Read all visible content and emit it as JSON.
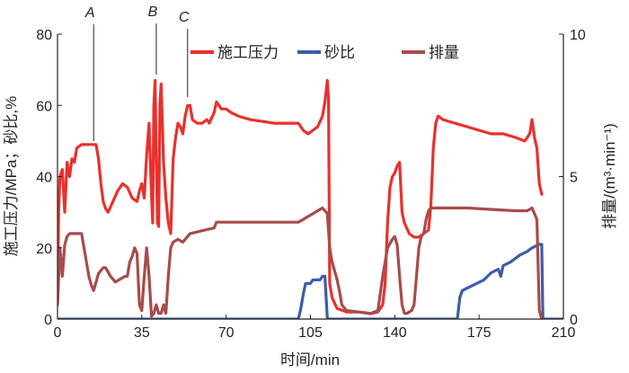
{
  "chart_data": {
    "type": "line",
    "xlabel": "时间/min",
    "ylabel_left": "施工压力/MPa；砂比,%",
    "ylabel_right": "排量/(m³·min⁻¹)",
    "xlim": [
      0,
      210
    ],
    "ylim_left": [
      0,
      80
    ],
    "ylim_right": [
      0,
      10
    ],
    "x_ticks": [
      0,
      35,
      70,
      105,
      140,
      175,
      210
    ],
    "y_left_ticks": [
      0,
      20,
      40,
      60,
      80
    ],
    "y_right_ticks": [
      0,
      5,
      10
    ],
    "annotations": [
      {
        "label": "A",
        "x": 15
      },
      {
        "label": "B",
        "x": 41
      },
      {
        "label": "C",
        "x": 54
      }
    ],
    "legend_position": "top-center",
    "series": [
      {
        "name": "施工压力",
        "color": "#e8312d",
        "axis": "left",
        "points": [
          [
            0,
            5
          ],
          [
            0.5,
            30
          ],
          [
            1,
            40
          ],
          [
            2,
            42
          ],
          [
            3,
            30
          ],
          [
            4,
            44
          ],
          [
            5,
            40
          ],
          [
            6,
            45
          ],
          [
            7,
            44
          ],
          [
            8,
            48
          ],
          [
            10,
            49
          ],
          [
            12,
            49
          ],
          [
            16,
            49
          ],
          [
            17,
            45
          ],
          [
            18,
            38
          ],
          [
            19,
            33
          ],
          [
            20,
            31
          ],
          [
            21,
            30
          ],
          [
            23,
            33
          ],
          [
            25,
            36
          ],
          [
            27,
            38
          ],
          [
            29,
            37
          ],
          [
            31,
            34
          ],
          [
            33,
            33
          ],
          [
            34,
            36
          ],
          [
            35,
            38
          ],
          [
            36,
            34
          ],
          [
            37,
            46
          ],
          [
            38,
            55
          ],
          [
            39,
            35
          ],
          [
            39.5,
            27
          ],
          [
            40,
            60
          ],
          [
            40.5,
            67
          ],
          [
            41,
            45
          ],
          [
            41.5,
            27
          ],
          [
            42,
            26
          ],
          [
            42.5,
            60
          ],
          [
            43,
            66
          ],
          [
            44,
            44
          ],
          [
            45,
            34
          ],
          [
            46,
            27
          ],
          [
            47,
            24
          ],
          [
            48,
            45
          ],
          [
            49,
            51
          ],
          [
            50,
            55
          ],
          [
            51,
            54
          ],
          [
            52,
            52
          ],
          [
            53,
            57
          ],
          [
            54,
            60
          ],
          [
            55,
            60
          ],
          [
            56,
            56
          ],
          [
            58,
            55
          ],
          [
            60,
            55
          ],
          [
            62,
            56
          ],
          [
            63,
            55
          ],
          [
            65,
            58
          ],
          [
            66,
            61
          ],
          [
            68,
            59
          ],
          [
            70,
            59
          ],
          [
            72,
            58
          ],
          [
            75,
            57
          ],
          [
            80,
            56
          ],
          [
            85,
            55.5
          ],
          [
            90,
            55
          ],
          [
            95,
            55
          ],
          [
            100,
            55
          ],
          [
            102,
            53
          ],
          [
            104,
            52
          ],
          [
            106,
            53
          ],
          [
            108,
            54
          ],
          [
            110,
            57
          ],
          [
            111,
            61
          ],
          [
            112,
            67
          ],
          [
            112.5,
            62
          ],
          [
            113,
            10
          ],
          [
            114,
            6
          ],
          [
            116,
            3
          ],
          [
            120,
            2
          ],
          [
            125,
            2
          ],
          [
            130,
            1.5
          ],
          [
            133,
            2
          ],
          [
            134,
            3
          ],
          [
            135,
            4
          ],
          [
            136,
            10
          ],
          [
            137,
            27
          ],
          [
            138,
            37
          ],
          [
            139,
            40
          ],
          [
            140,
            41
          ],
          [
            141,
            43
          ],
          [
            142,
            44
          ],
          [
            143,
            30
          ],
          [
            144,
            27
          ],
          [
            146,
            24
          ],
          [
            148,
            23
          ],
          [
            150,
            23
          ],
          [
            152,
            24
          ],
          [
            154,
            25
          ],
          [
            155,
            32
          ],
          [
            156,
            48
          ],
          [
            157,
            55
          ],
          [
            158,
            57
          ],
          [
            160,
            56
          ],
          [
            165,
            55
          ],
          [
            170,
            54
          ],
          [
            175,
            53
          ],
          [
            180,
            52
          ],
          [
            185,
            52
          ],
          [
            190,
            51
          ],
          [
            194,
            50
          ],
          [
            196,
            52
          ],
          [
            197,
            56
          ],
          [
            198,
            51
          ],
          [
            199,
            48
          ],
          [
            200,
            38
          ],
          [
            201,
            35
          ]
        ]
      },
      {
        "name": "砂比",
        "color": "#3d5ca8",
        "axis": "left",
        "points": [
          [
            0,
            0
          ],
          [
            100,
            0
          ],
          [
            101,
            3
          ],
          [
            102,
            7
          ],
          [
            103,
            10
          ],
          [
            105,
            10
          ],
          [
            106,
            11
          ],
          [
            109,
            11
          ],
          [
            110,
            12
          ],
          [
            111,
            12
          ],
          [
            112,
            0
          ],
          [
            117,
            0
          ],
          [
            140,
            0
          ],
          [
            145,
            0
          ],
          [
            150,
            0
          ],
          [
            160,
            0
          ],
          [
            166,
            0
          ],
          [
            167,
            6
          ],
          [
            168,
            8
          ],
          [
            171,
            9
          ],
          [
            174,
            10
          ],
          [
            177,
            11
          ],
          [
            180,
            13
          ],
          [
            183,
            14
          ],
          [
            184,
            12
          ],
          [
            185,
            15
          ],
          [
            188,
            16
          ],
          [
            192,
            18
          ],
          [
            195,
            19
          ],
          [
            197,
            20
          ],
          [
            200,
            21
          ],
          [
            201,
            21
          ],
          [
            201.5,
            0
          ],
          [
            205,
            0
          ],
          [
            210,
            0
          ]
        ]
      },
      {
        "name": "排量",
        "color": "#a84b4b",
        "axis": "right",
        "points": [
          [
            0,
            0.5
          ],
          [
            1,
            2.5
          ],
          [
            2,
            1.5
          ],
          [
            3,
            2.6
          ],
          [
            4,
            2.9
          ],
          [
            5,
            3
          ],
          [
            8,
            3
          ],
          [
            10,
            3
          ],
          [
            11,
            2.5
          ],
          [
            12,
            2
          ],
          [
            13,
            1.5
          ],
          [
            14,
            1.2
          ],
          [
            15,
            1
          ],
          [
            16,
            1.3
          ],
          [
            17,
            1.6
          ],
          [
            19,
            1.8
          ],
          [
            20,
            1.8
          ],
          [
            22,
            1.5
          ],
          [
            24,
            1.3
          ],
          [
            26,
            1.4
          ],
          [
            28,
            1.5
          ],
          [
            29,
            1.5
          ],
          [
            30,
            2
          ],
          [
            31,
            2.2
          ],
          [
            32,
            2.5
          ],
          [
            33,
            2.3
          ],
          [
            34,
            0.5
          ],
          [
            35,
            0.3
          ],
          [
            36,
            1.5
          ],
          [
            37,
            2.5
          ],
          [
            38,
            1.5
          ],
          [
            39,
            0.1
          ],
          [
            40,
            0.2
          ],
          [
            41,
            0.5
          ],
          [
            42,
            0.2
          ],
          [
            43,
            0.2
          ],
          [
            44,
            0.5
          ],
          [
            45,
            0.2
          ],
          [
            46,
            1.5
          ],
          [
            47,
            2.5
          ],
          [
            48,
            2.7
          ],
          [
            50,
            2.8
          ],
          [
            52,
            2.7
          ],
          [
            55,
            3
          ],
          [
            60,
            3.1
          ],
          [
            65,
            3.2
          ],
          [
            66,
            3.4
          ],
          [
            68,
            3.4
          ],
          [
            80,
            3.4
          ],
          [
            95,
            3.4
          ],
          [
            100,
            3.4
          ],
          [
            102,
            3.5
          ],
          [
            104,
            3.6
          ],
          [
            106,
            3.7
          ],
          [
            108,
            3.8
          ],
          [
            110,
            3.9
          ],
          [
            111,
            3.8
          ],
          [
            112,
            3.7
          ],
          [
            113,
            2.5
          ],
          [
            114,
            2
          ],
          [
            116,
            1.4
          ],
          [
            117,
            1
          ],
          [
            118,
            0.5
          ],
          [
            120,
            0.3
          ],
          [
            130,
            0.2
          ],
          [
            133,
            0.3
          ],
          [
            135,
            1.5
          ],
          [
            137,
            2.5
          ],
          [
            139,
            2.8
          ],
          [
            140,
            2.9
          ],
          [
            141,
            2.6
          ],
          [
            142,
            1.5
          ],
          [
            143,
            0.5
          ],
          [
            144,
            0.2
          ],
          [
            145,
            0.2
          ],
          [
            147,
            0.3
          ],
          [
            148,
            0.5
          ],
          [
            149,
            1.5
          ],
          [
            150,
            2.5
          ],
          [
            151,
            2.9
          ],
          [
            152,
            3
          ],
          [
            153,
            3.5
          ],
          [
            154,
            3.8
          ],
          [
            155,
            3.9
          ],
          [
            160,
            3.9
          ],
          [
            170,
            3.9
          ],
          [
            180,
            3.85
          ],
          [
            190,
            3.8
          ],
          [
            195,
            3.8
          ],
          [
            197,
            3.9
          ],
          [
            199,
            3.5
          ],
          [
            200,
            0.3
          ],
          [
            201,
            0
          ]
        ]
      }
    ]
  }
}
